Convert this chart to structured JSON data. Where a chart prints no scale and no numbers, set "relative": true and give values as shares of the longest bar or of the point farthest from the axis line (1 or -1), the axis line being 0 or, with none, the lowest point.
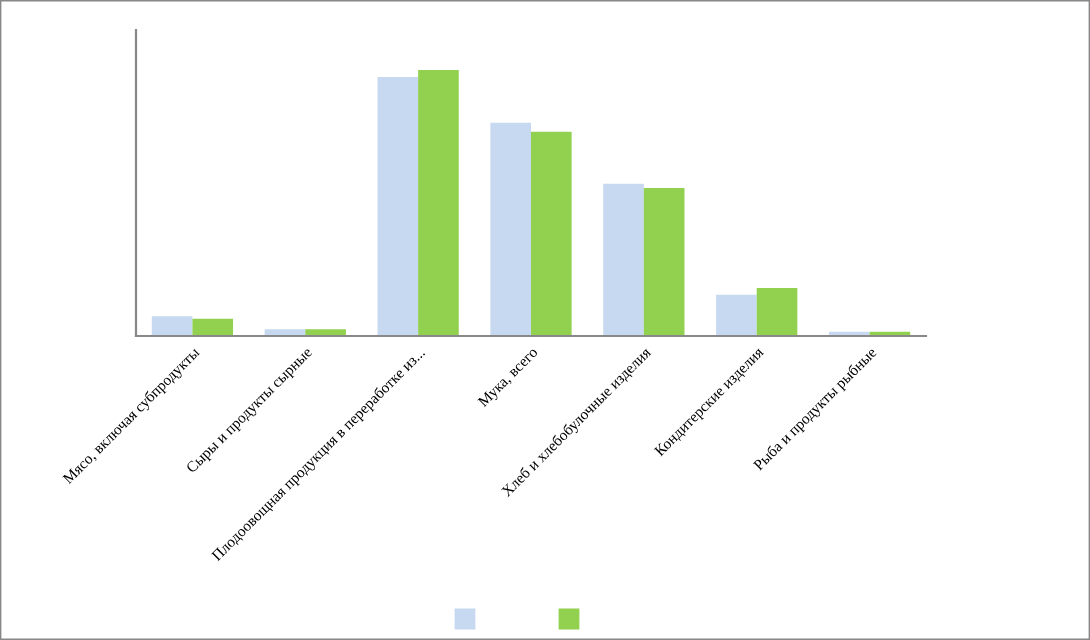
{
  "chart_data": {
    "type": "bar",
    "relative": true,
    "categories": [
      "Мясо, включая субпродукты",
      "Сыры и продукты сырные",
      "Плодоовощная продукция в переработке из...",
      "Мука, всего",
      "Хлеб и хлебобулочные изделия",
      "Кондитерские изделия",
      "Рыба и продукты рыбные"
    ],
    "series": [
      {
        "color": "#c6d9f0",
        "values": [
          0.074,
          0.025,
          0.973,
          0.801,
          0.572,
          0.155,
          0.016
        ]
      },
      {
        "color": "#92d050",
        "values": [
          0.065,
          0.025,
          1,
          0.768,
          0.556,
          0.18,
          0.016
        ]
      }
    ],
    "grid": false
  }
}
